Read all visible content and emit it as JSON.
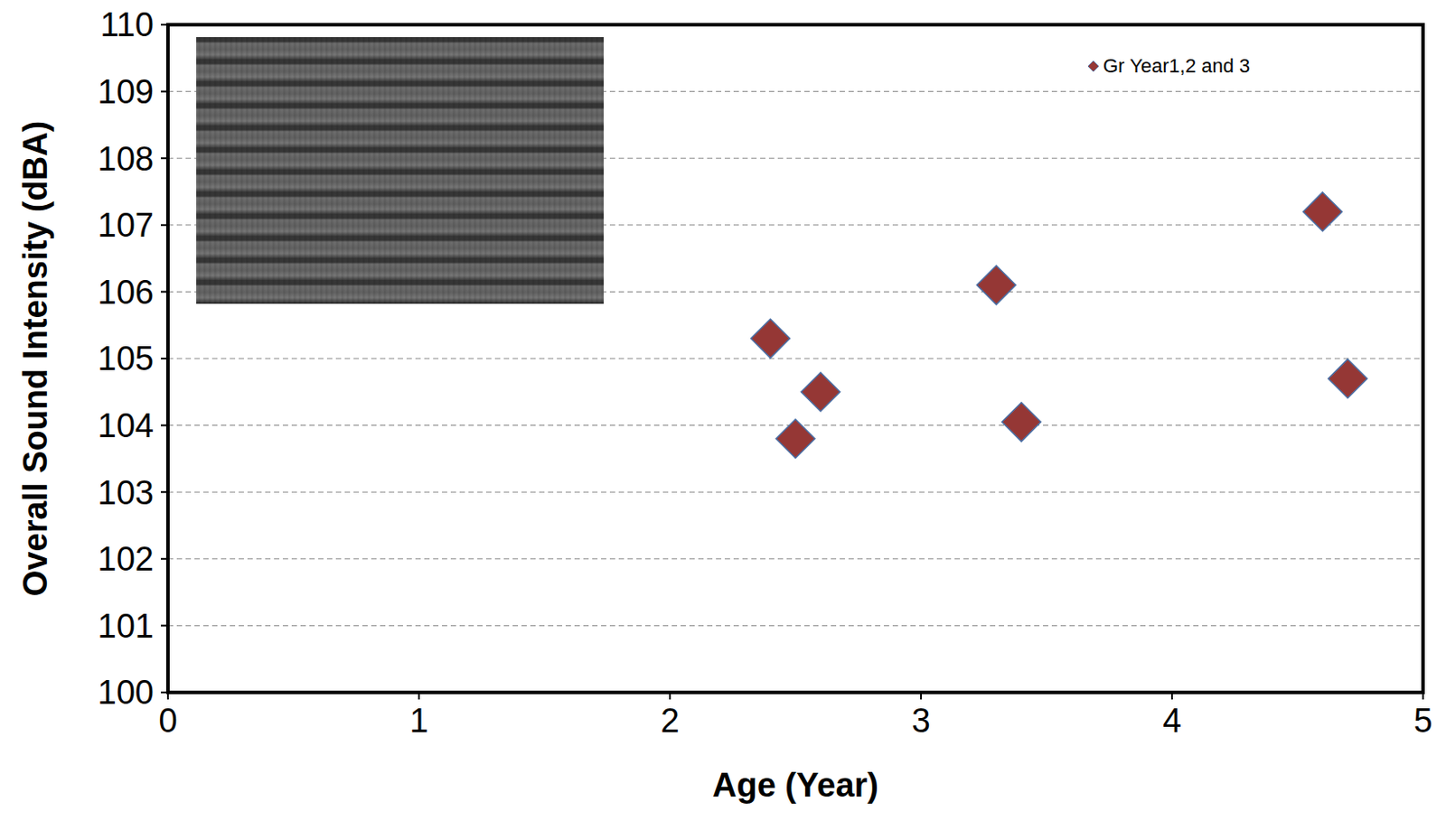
{
  "chart_data": {
    "type": "scatter",
    "x_label": "Age (Year)",
    "y_label": "Overall Sound Intensity (dBA)",
    "series": [
      {
        "name": "Gr Year1,2 and 3",
        "color": "#953735",
        "marker": "diamond",
        "x": [
          2.4,
          2.5,
          2.6,
          3.3,
          3.4,
          4.6,
          4.7
        ],
        "values": [
          105.3,
          103.8,
          104.5,
          106.1,
          104.05,
          107.2,
          104.7
        ]
      }
    ],
    "xlim": [
      0,
      5
    ],
    "xticks": [
      0,
      1,
      2,
      3,
      4,
      5
    ],
    "ylim": [
      100,
      110
    ],
    "yticks": [
      100,
      101,
      102,
      103,
      104,
      105,
      106,
      107,
      108,
      109,
      110
    ],
    "grid": true,
    "legend": "upper right"
  }
}
